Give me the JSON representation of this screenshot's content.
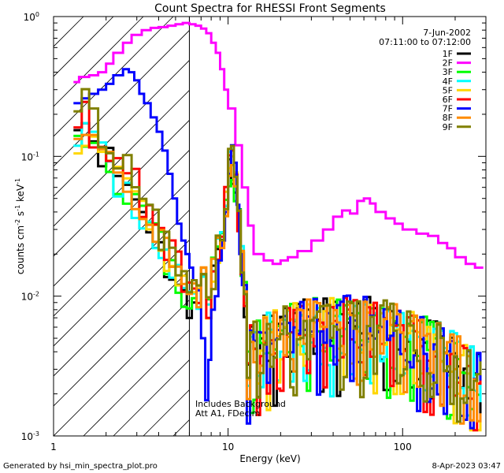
{
  "chart_data": {
    "type": "line",
    "title": "Count Spectra for RHESSI Front Segments",
    "xlabel": "Energy (keV)",
    "ylabel_parts": {
      "base": "counts cm",
      "exp1": "-2",
      "mid1": " s",
      "exp2": "-1",
      "mid2": " keV",
      "exp3": "-1"
    },
    "xscale": "log",
    "yscale": "log",
    "xlim": [
      1,
      300
    ],
    "ylim": [
      0.001,
      1
    ],
    "x_tick_labels": [
      {
        "value": 1,
        "label": "1"
      },
      {
        "value": 10,
        "label": "10"
      },
      {
        "value": 100,
        "label": "100"
      }
    ],
    "y_tick_labels": [
      {
        "value": 0.001,
        "base": "10",
        "exp": "-3"
      },
      {
        "value": 0.01,
        "base": "10",
        "exp": "-2"
      },
      {
        "value": 0.1,
        "base": "10",
        "exp": "-1"
      },
      {
        "value": 1,
        "base": "10",
        "exp": "0"
      }
    ],
    "date": "7-Jun-2002",
    "time_range": "07:11:00 to 07:12:00",
    "annotation_lines": [
      "Includes Background",
      "Att A1, FDecim"
    ],
    "shaded_region_keV": [
      1,
      6
    ],
    "series": [
      {
        "name": "1F",
        "color": "#000000",
        "amp": 0.22,
        "low_end": 0.0075,
        "peak": 0.09,
        "seed": 11
      },
      {
        "name": "2F",
        "color": "#ff00ff",
        "values": [
          [
            1.3,
            0.34
          ],
          [
            1.4,
            0.37
          ],
          [
            1.6,
            0.38
          ],
          [
            1.8,
            0.4
          ],
          [
            2.0,
            0.46
          ],
          [
            2.2,
            0.55
          ],
          [
            2.5,
            0.65
          ],
          [
            2.8,
            0.74
          ],
          [
            3.2,
            0.8
          ],
          [
            3.6,
            0.83
          ],
          [
            4.0,
            0.84
          ],
          [
            4.5,
            0.86
          ],
          [
            5.0,
            0.88
          ],
          [
            5.5,
            0.9
          ],
          [
            6.0,
            0.88
          ],
          [
            6.5,
            0.86
          ],
          [
            7.0,
            0.82
          ],
          [
            7.5,
            0.76
          ],
          [
            8.0,
            0.65
          ],
          [
            8.5,
            0.55
          ],
          [
            9.0,
            0.42
          ],
          [
            9.5,
            0.3
          ],
          [
            10,
            0.22
          ],
          [
            11,
            0.12
          ],
          [
            12,
            0.06
          ],
          [
            13,
            0.032
          ],
          [
            14,
            0.02
          ],
          [
            16,
            0.018
          ],
          [
            18,
            0.017
          ],
          [
            20,
            0.018
          ],
          [
            22,
            0.019
          ],
          [
            25,
            0.021
          ],
          [
            30,
            0.025
          ],
          [
            35,
            0.03
          ],
          [
            40,
            0.037
          ],
          [
            45,
            0.041
          ],
          [
            50,
            0.039
          ],
          [
            55,
            0.048
          ],
          [
            60,
            0.05
          ],
          [
            65,
            0.046
          ],
          [
            70,
            0.04
          ],
          [
            80,
            0.036
          ],
          [
            90,
            0.033
          ],
          [
            100,
            0.03
          ],
          [
            110,
            0.03
          ],
          [
            120,
            0.028
          ],
          [
            140,
            0.027
          ],
          [
            160,
            0.024
          ],
          [
            180,
            0.022
          ],
          [
            200,
            0.019
          ],
          [
            230,
            0.017
          ],
          [
            260,
            0.016
          ],
          [
            290,
            0.016
          ]
        ]
      },
      {
        "name": "3F",
        "color": "#00ff00",
        "amp": 0.2,
        "low_end": 0.0085,
        "peak": 0.088,
        "seed": 23
      },
      {
        "name": "4F",
        "color": "#00ffff",
        "amp": 0.17,
        "low_end": 0.009,
        "peak": 0.12,
        "seed": 37
      },
      {
        "name": "5F",
        "color": "#ffd700",
        "amp": 0.15,
        "low_end": 0.0105,
        "peak": 0.086,
        "seed": 41
      },
      {
        "name": "6F",
        "color": "#ff0000",
        "amp": 0.23,
        "low_end": 0.012,
        "peak": 0.09,
        "seed": 53
      },
      {
        "name": "7F",
        "color": "#0000ff",
        "values": [
          [
            1.3,
            0.24
          ],
          [
            1.45,
            0.26
          ],
          [
            1.6,
            0.28
          ],
          [
            1.8,
            0.3
          ],
          [
            2.0,
            0.33
          ],
          [
            2.2,
            0.38
          ],
          [
            2.5,
            0.42
          ],
          [
            2.7,
            0.4
          ],
          [
            2.9,
            0.35
          ],
          [
            3.1,
            0.28
          ],
          [
            3.3,
            0.24
          ],
          [
            3.6,
            0.19
          ],
          [
            3.9,
            0.15
          ],
          [
            4.2,
            0.11
          ],
          [
            4.5,
            0.075
          ],
          [
            4.8,
            0.05
          ],
          [
            5.1,
            0.033
          ],
          [
            5.4,
            0.025
          ],
          [
            5.7,
            0.02
          ],
          [
            6.0,
            0.016
          ],
          [
            6.3,
            0.013
          ],
          [
            6.6,
            0.011
          ],
          [
            7.0,
            0.005
          ],
          [
            7.4,
            0.0018
          ],
          [
            7.7,
            0.0035
          ],
          [
            8.0,
            0.008
          ],
          [
            8.4,
            0.01
          ],
          [
            8.8,
            0.018
          ],
          [
            9.2,
            0.025
          ],
          [
            9.6,
            0.04
          ],
          [
            10,
            0.075
          ],
          [
            10.4,
            0.12
          ],
          [
            10.8,
            0.09
          ],
          [
            11.2,
            0.045
          ],
          [
            11.6,
            0.02
          ],
          [
            12,
            0.012
          ]
        ],
        "amp": 0.0,
        "low_end": 0.012,
        "peak": 0.12,
        "seed": 67,
        "tail_only": true
      },
      {
        "name": "8F",
        "color": "#ff8c00",
        "amp": 0.19,
        "low_end": 0.0095,
        "peak": 0.085,
        "seed": 71
      },
      {
        "name": "9F",
        "color": "#808000",
        "amp": 0.3,
        "low_end": 0.0095,
        "peak": 0.11,
        "seed": 83
      }
    ]
  },
  "footer": {
    "generated_by": "Generated by hsi_min_spectra_plot.pro",
    "timestamp": "8-Apr-2023 03:47"
  }
}
